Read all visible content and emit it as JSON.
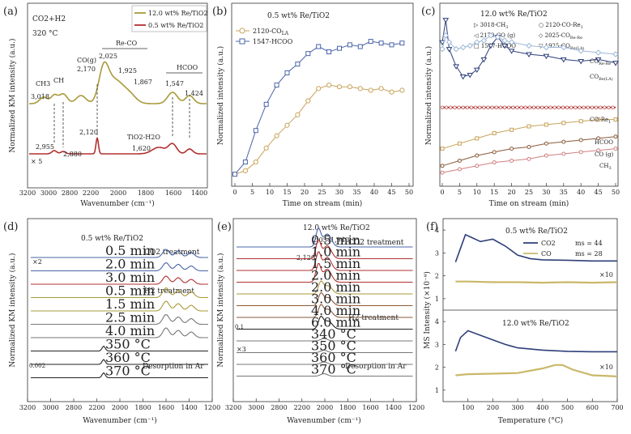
{
  "colors": {
    "olive": "#a99a3a",
    "darkred": "#b23030",
    "navy": "#2e3f7a",
    "blue": "#4a64a8",
    "tan": "#c9a35a",
    "brown": "#8a5a3a",
    "pink": "#d08080",
    "lightblue": "#9db8d8",
    "gray": "#777777",
    "black": "#222222"
  },
  "chart_data": [
    {
      "id": "a",
      "panel_label": "(a)",
      "type": "line",
      "condition_line1": "CO2+H2",
      "condition_line2": "320 °C",
      "xlabel": "Wavenumber (cm⁻¹)",
      "ylabel": "Normalized KM intensity (a.u.)",
      "xticks": [
        "3200",
        "3000",
        "2800",
        "2200",
        "2000",
        "1800",
        "1600",
        "1400"
      ],
      "legend": [
        "12.0 wt% Re/TiO2",
        "0.5 wt% Re/TiO2"
      ],
      "series": [
        {
          "name": "12.0 wt% Re/TiO2",
          "peaks": [
            3018,
            2955,
            2170,
            2025,
            1925,
            1867,
            1547,
            1424
          ]
        },
        {
          "name": "0.5 wt% Re/TiO2",
          "peaks": [
            2955,
            2880,
            2120,
            1620,
            1547,
            1424
          ]
        }
      ],
      "annotations": {
        "ch3": "CH3",
        "ch": "CH",
        "cog": "CO(g)",
        "reco": "Re-CO",
        "hcoo": "HCOO",
        "p3018": "3,018",
        "p2170": "2,170",
        "p2025": "2,025",
        "p1925": "1,925",
        "p1867": "1,867",
        "p1547": "1,547",
        "p1424": "1,424",
        "p2955": "2,955",
        "p2880": "2,880",
        "p2120": "2,120",
        "tio2h2o": "TiO2-H2O",
        "p1620": "1,620",
        "times5": "× 5"
      }
    },
    {
      "id": "b",
      "panel_label": "(b)",
      "type": "line",
      "title": "0.5 wt% Re/TiO2",
      "xlabel": "Time on stream  (min)",
      "ylabel": "Normalized intensity (a.u.)",
      "xlim": [
        0,
        50
      ],
      "xticks": [
        "0",
        "5",
        "10",
        "15",
        "20",
        "25",
        "30",
        "35",
        "40",
        "45",
        "50"
      ],
      "series": [
        {
          "name": "2120-COLA",
          "legend_main": "2120-CO",
          "legend_sub": "LA",
          "x": [
            0,
            3,
            6,
            9,
            12,
            15,
            18,
            21,
            24,
            27,
            30,
            33,
            36,
            39,
            42,
            45,
            48
          ],
          "y": [
            0.05,
            0.07,
            0.12,
            0.2,
            0.27,
            0.33,
            0.39,
            0.47,
            0.54,
            0.56,
            0.55,
            0.55,
            0.54,
            0.53,
            0.54,
            0.52,
            0.53
          ]
        },
        {
          "name": "1547-HCOO",
          "legend_main": "1547-HCOO",
          "legend_sub": "",
          "x": [
            0,
            3,
            6,
            9,
            12,
            15,
            18,
            21,
            24,
            27,
            30,
            33,
            36,
            39,
            42,
            45,
            48
          ],
          "y": [
            0.05,
            0.12,
            0.3,
            0.45,
            0.56,
            0.63,
            0.68,
            0.74,
            0.78,
            0.75,
            0.77,
            0.79,
            0.78,
            0.81,
            0.8,
            0.79,
            0.8
          ]
        }
      ]
    },
    {
      "id": "c",
      "panel_label": "(c)",
      "type": "line",
      "title": "12.0 wt% Re/TiO2",
      "xlabel": "Time on stream  (min)",
      "ylabel": "Normalized intensity (a.u.)",
      "xlim": [
        0,
        50
      ],
      "xticks": [
        "0",
        "5",
        "10",
        "15",
        "20",
        "25",
        "30",
        "35",
        "40",
        "45",
        "50"
      ],
      "legend": [
        {
          "main": "3018-CH",
          "sub": "3"
        },
        {
          "main": "2120-CO-Re",
          "sub": "1"
        },
        {
          "main": "2170-CO (g)",
          "sub": ""
        },
        {
          "main": "2025-CO",
          "sub": "Re-Re"
        },
        {
          "main": "1547-HCOO",
          "sub": ""
        },
        {
          "main": "1925-CO",
          "sub": "Re(LA)"
        }
      ],
      "series": [
        {
          "name": "1925-CORe(LA)",
          "x": [
            0,
            1,
            2,
            4,
            6,
            8,
            10,
            12,
            14,
            16,
            18,
            20,
            25,
            30,
            35,
            40,
            45,
            50
          ],
          "y": [
            0.82,
            0.95,
            0.78,
            0.68,
            0.62,
            0.63,
            0.66,
            0.72,
            0.8,
            0.85,
            0.8,
            0.77,
            0.75,
            0.74,
            0.72,
            0.71,
            0.72,
            0.7
          ]
        },
        {
          "name": "2025-CORe-Re",
          "x": [
            0,
            1,
            2,
            4,
            6,
            8,
            10,
            12,
            14,
            16,
            18,
            20,
            25,
            30,
            35,
            40,
            45,
            50
          ],
          "y": [
            0.78,
            0.86,
            0.82,
            0.78,
            0.79,
            0.8,
            0.82,
            0.83,
            0.86,
            0.85,
            0.83,
            0.82,
            0.8,
            0.79,
            0.79,
            0.77,
            0.76,
            0.75
          ]
        },
        {
          "name": "2120-CO-Re1",
          "x": [
            0,
            50
          ],
          "y": [
            0.44,
            0.44
          ]
        },
        {
          "name": "1547-HCOO",
          "x": [
            0,
            5,
            10,
            15,
            20,
            25,
            30,
            35,
            40,
            45,
            50
          ],
          "y": [
            0.2,
            0.23,
            0.26,
            0.29,
            0.31,
            0.33,
            0.34,
            0.35,
            0.36,
            0.37,
            0.37
          ]
        },
        {
          "name": "2170-CO (g)",
          "x": [
            0,
            5,
            10,
            15,
            20,
            25,
            30,
            35,
            40,
            45,
            50
          ],
          "y": [
            0.1,
            0.13,
            0.16,
            0.18,
            0.2,
            0.21,
            0.23,
            0.24,
            0.25,
            0.26,
            0.27
          ]
        },
        {
          "name": "3018-CH3",
          "x": [
            0,
            5,
            10,
            15,
            20,
            25,
            30,
            35,
            40,
            45,
            50
          ],
          "y": [
            0.06,
            0.08,
            0.1,
            0.12,
            0.13,
            0.14,
            0.16,
            0.17,
            0.18,
            0.19,
            0.2
          ]
        }
      ],
      "annotations": [
        {
          "main": "CO",
          "sub": "Re-Re"
        },
        {
          "main": "CO",
          "sub": "Re(LA)"
        },
        {
          "main": "CO-Re",
          "sub": "1"
        },
        {
          "main": "HCOO",
          "sub": ""
        },
        {
          "main": "CO (g)",
          "sub": ""
        },
        {
          "main": "CH",
          "sub": "3"
        }
      ]
    },
    {
      "id": "d",
      "panel_label": "(d)",
      "type": "line",
      "title": "0.5 wt% Re/TiO2",
      "xlabel": "Wavenumber (cm⁻¹)",
      "ylabel": "Normalized KM intensity (a.u.)",
      "xticks": [
        "3200",
        "3000",
        "2800",
        "2200",
        "2000",
        "1800",
        "1600",
        "1400",
        "1200"
      ],
      "sections": [
        "CO2 treatment",
        "H2 treatment",
        "Desorption in Ar"
      ],
      "traces": [
        "0.5 min",
        "2.0 min",
        "3.0 min",
        "0.5 min",
        "1.5 min",
        "2.5 min",
        "4.0 min",
        "350 °C",
        "360 °C",
        "370 °C"
      ],
      "scale_labels": [
        "×2",
        "0.002"
      ]
    },
    {
      "id": "e",
      "panel_label": "(e)",
      "type": "line",
      "title": "12.0 wt%  Re/TiO2",
      "xlabel": "Wavenumber (cm⁻¹)",
      "ylabel": "Normalized KM intensity (a.u.)",
      "xticks": [
        "3200",
        "3000",
        "2800",
        "2200",
        "2000",
        "1800",
        "1600",
        "1400",
        "1200"
      ],
      "sections": [
        "CO2 treatment",
        "H2 treatment",
        "Desorption in Ar"
      ],
      "traces": [
        "0.5 min",
        "1.0 min",
        "1.5 min",
        "2.0 min",
        "2.0 min",
        "3.0 min",
        "4.0 min",
        "6.0 min",
        "340 °C",
        "350 °C",
        "360 °C",
        "370 °C"
      ],
      "peak_labels": [
        "2,054",
        "1,940",
        "2,120"
      ],
      "scale_labels": [
        "0.1",
        "×3"
      ]
    },
    {
      "id": "f",
      "panel_label": "(f)",
      "type": "line",
      "xlabel": "Temperature (°C)",
      "ylabel": "MS Intensity (×10⁻⁹)",
      "xlim": [
        0,
        700
      ],
      "xticks": [
        "100",
        "200",
        "300",
        "400",
        "500",
        "600",
        "700"
      ],
      "panels": [
        {
          "title": "0.5 wt% Re/TiO2",
          "legend": [
            {
              "name": "CO2",
              "ms": "ms = 44"
            },
            {
              "name": "CO",
              "ms": "ms = 28"
            }
          ],
          "multiplier": "×10",
          "yticks": [
            "1",
            "2",
            "3",
            "4"
          ],
          "series": [
            {
              "name": "CO2",
              "x": [
                50,
                70,
                90,
                110,
                150,
                200,
                250,
                300,
                350,
                400,
                500,
                600,
                700
              ],
              "y": [
                2.6,
                3.2,
                3.8,
                3.7,
                3.5,
                3.6,
                3.3,
                2.9,
                2.75,
                2.7,
                2.68,
                2.65,
                2.65
              ]
            },
            {
              "name": "CO",
              "x": [
                50,
                100,
                200,
                300,
                400,
                500,
                600,
                700
              ],
              "y": [
                1.75,
                1.75,
                1.72,
                1.72,
                1.7,
                1.72,
                1.7,
                1.72
              ]
            }
          ]
        },
        {
          "title": "12.0 wt% Re/TiO2",
          "multiplier": "×10",
          "yticks": [
            "1",
            "2",
            "3",
            "4"
          ],
          "series": [
            {
              "name": "CO2",
              "x": [
                50,
                70,
                100,
                150,
                200,
                250,
                300,
                400,
                500,
                600,
                700
              ],
              "y": [
                2.7,
                3.3,
                3.6,
                3.4,
                3.2,
                3.0,
                2.85,
                2.75,
                2.7,
                2.68,
                2.68
              ]
            },
            {
              "name": "CO",
              "x": [
                50,
                100,
                200,
                300,
                400,
                450,
                480,
                520,
                600,
                700
              ],
              "y": [
                1.65,
                1.7,
                1.72,
                1.75,
                1.95,
                2.1,
                2.1,
                1.9,
                1.65,
                1.6
              ]
            }
          ]
        }
      ]
    }
  ]
}
